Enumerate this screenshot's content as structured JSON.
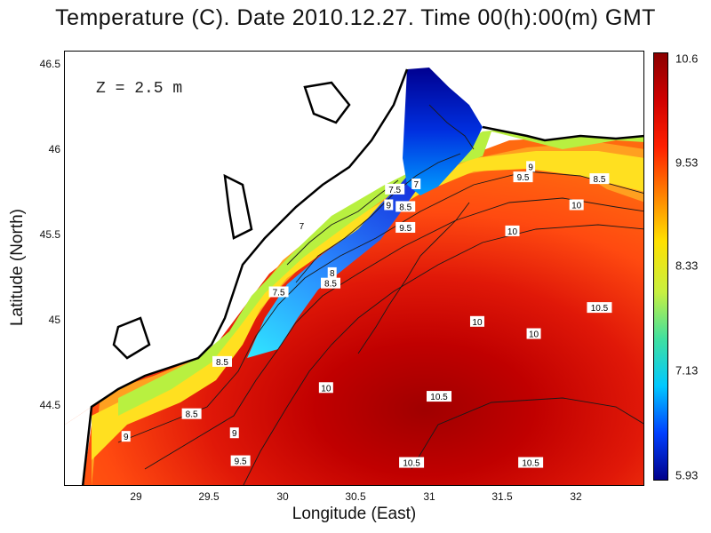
{
  "title": "Temperature (C). Date 2010.12.27. Time 00(h):00(m) GMT",
  "depth_label": "Z = 2.5 m",
  "chart_data": {
    "type": "heatmap",
    "title": "Temperature (C). Date 2010.12.27. Time 00(h):00(m) GMT",
    "xlabel": "Longitude (East)",
    "ylabel": "Latitude (North)",
    "xlim": [
      28.65,
      32.45
    ],
    "ylim": [
      44.05,
      46.55
    ],
    "x_ticks": [
      "29",
      "29.5",
      "30",
      "30.5",
      "31",
      "31.5",
      "32"
    ],
    "y_ticks": [
      "44.5",
      "45",
      "45.5",
      "46",
      "46.5"
    ],
    "colorbar": {
      "range": [
        5.93,
        10.6
      ],
      "tick_labels": [
        "10.6",
        "9.53",
        "8.33",
        "7.13",
        "5.93"
      ],
      "colors": [
        "#00008b",
        "#0040ff",
        "#00c8ff",
        "#40e0a0",
        "#c8f040",
        "#ffe000",
        "#ff8000",
        "#ff2000",
        "#d00000",
        "#8b0000"
      ]
    },
    "contour_labels": [
      {
        "text": "7.5",
        "lon": 30.81,
        "lat": 45.76
      },
      {
        "text": "7",
        "lon": 30.95,
        "lat": 45.79
      },
      {
        "text": "9",
        "lon": 30.77,
        "lat": 45.67
      },
      {
        "text": "8.5",
        "lon": 30.88,
        "lat": 45.66
      },
      {
        "text": "9",
        "lon": 31.7,
        "lat": 45.89
      },
      {
        "text": "9.5",
        "lon": 31.65,
        "lat": 45.83
      },
      {
        "text": "8.5",
        "lon": 32.15,
        "lat": 45.82
      },
      {
        "text": "10",
        "lon": 32.0,
        "lat": 45.67
      },
      {
        "text": "7",
        "lon": 30.2,
        "lat": 45.55
      },
      {
        "text": "9.5",
        "lon": 30.88,
        "lat": 45.54
      },
      {
        "text": "10",
        "lon": 31.58,
        "lat": 45.52
      },
      {
        "text": "8",
        "lon": 30.4,
        "lat": 45.28
      },
      {
        "text": "8.5",
        "lon": 30.39,
        "lat": 45.22
      },
      {
        "text": "7.5",
        "lon": 30.05,
        "lat": 45.17
      },
      {
        "text": "10.5",
        "lon": 32.15,
        "lat": 45.08
      },
      {
        "text": "10",
        "lon": 31.35,
        "lat": 45.0
      },
      {
        "text": "10",
        "lon": 31.72,
        "lat": 44.93
      },
      {
        "text": "8.5",
        "lon": 29.68,
        "lat": 44.77
      },
      {
        "text": "10",
        "lon": 30.36,
        "lat": 44.62
      },
      {
        "text": "10.5",
        "lon": 31.1,
        "lat": 44.57
      },
      {
        "text": "8.5",
        "lon": 29.48,
        "lat": 44.47
      },
      {
        "text": "9",
        "lon": 29.76,
        "lat": 44.36
      },
      {
        "text": "9",
        "lon": 29.05,
        "lat": 44.34
      },
      {
        "text": "9.5",
        "lon": 29.8,
        "lat": 44.2
      },
      {
        "text": "10.5",
        "lon": 30.92,
        "lat": 44.19
      },
      {
        "text": "10.5",
        "lon": 31.7,
        "lat": 44.19
      }
    ]
  }
}
